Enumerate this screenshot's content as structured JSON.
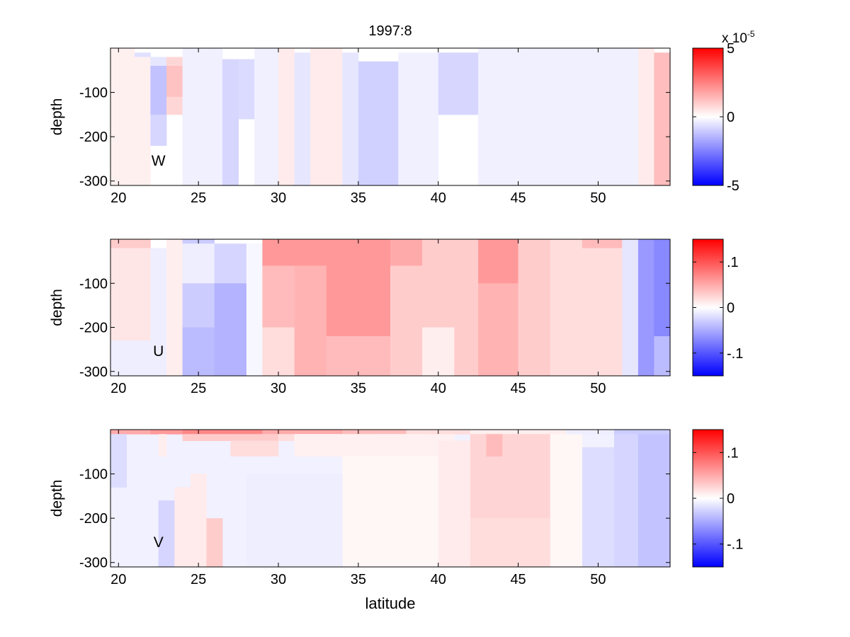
{
  "figure": {
    "title": "1997:8",
    "xlabel": "latitude"
  },
  "chart_data": [
    {
      "type": "heatmap",
      "panel_label": "W",
      "ylabel": "depth",
      "xlim": [
        19.5,
        54.5
      ],
      "ylim": [
        -310,
        0
      ],
      "x_ticks": [
        20,
        25,
        30,
        35,
        40,
        45,
        50
      ],
      "y_ticks": [
        -100,
        -200,
        -300
      ],
      "colorbar": {
        "clim": [
          -5,
          5
        ],
        "ticks": [
          5,
          0,
          -5
        ],
        "multiplier_text": "x 10",
        "multiplier_exp": "-5",
        "low_color": "#0000ff",
        "mid_color": "#ffffff",
        "high_color": "#ff0000"
      },
      "cells": [
        [
          19.5,
          21,
          0,
          -310,
          0.3
        ],
        [
          21,
          22,
          -10,
          -20,
          -0.6
        ],
        [
          21,
          22,
          -20,
          -310,
          0.3
        ],
        [
          22,
          23,
          -20,
          -40,
          -0.5
        ],
        [
          22,
          23,
          -40,
          -150,
          -1.2
        ],
        [
          22,
          23,
          -150,
          -220,
          -0.8
        ],
        [
          23,
          24,
          -20,
          -40,
          0.8
        ],
        [
          23,
          24,
          -40,
          -110,
          1.2
        ],
        [
          23,
          24,
          -110,
          -150,
          0.8
        ],
        [
          24,
          26.5,
          0,
          -310,
          -0.3
        ],
        [
          26.5,
          27.5,
          -25,
          -310,
          -0.8
        ],
        [
          27.5,
          28.5,
          -25,
          -160,
          -0.7
        ],
        [
          28.5,
          30,
          0,
          -310,
          -0.3
        ],
        [
          30,
          31,
          0,
          -310,
          0.4
        ],
        [
          31,
          32,
          -10,
          -310,
          -0.5
        ],
        [
          32,
          34,
          0,
          -310,
          0.4
        ],
        [
          34,
          35,
          -10,
          -310,
          -0.5
        ],
        [
          35,
          37.5,
          -30,
          -310,
          -0.9
        ],
        [
          37.5,
          40,
          -10,
          -310,
          -0.3
        ],
        [
          40,
          42.5,
          -10,
          -150,
          -0.8
        ],
        [
          42.5,
          52.5,
          0,
          -310,
          -0.3
        ],
        [
          52.5,
          53.5,
          0,
          -310,
          0.4
        ],
        [
          53.5,
          54.5,
          -10,
          -310,
          1.3
        ]
      ]
    },
    {
      "type": "heatmap",
      "panel_label": "U",
      "ylabel": "depth",
      "xlim": [
        19.5,
        54.5
      ],
      "ylim": [
        -310,
        0
      ],
      "x_ticks": [
        20,
        25,
        30,
        35,
        40,
        45,
        50
      ],
      "y_ticks": [
        -100,
        -200,
        -300
      ],
      "colorbar": {
        "clim": [
          -0.15,
          0.15
        ],
        "ticks": [
          0.1,
          0,
          -0.1
        ],
        "low_color": "#0000ff",
        "mid_color": "#ffffff",
        "high_color": "#ff0000"
      },
      "cells": [
        [
          19.5,
          22,
          0,
          -20,
          0.03
        ],
        [
          19.5,
          22,
          -20,
          -230,
          0.015
        ],
        [
          19.5,
          22,
          -230,
          -310,
          -0.01
        ],
        [
          22,
          23,
          -20,
          -310,
          -0.01
        ],
        [
          23,
          24,
          0,
          -310,
          0.01
        ],
        [
          24,
          26,
          0,
          -10,
          -0.03
        ],
        [
          24,
          26,
          -10,
          -100,
          -0.01
        ],
        [
          24,
          26,
          -100,
          -200,
          -0.03
        ],
        [
          24,
          26,
          -200,
          -310,
          -0.04
        ],
        [
          26,
          28,
          -10,
          -100,
          -0.025
        ],
        [
          26,
          28,
          -100,
          -310,
          -0.045
        ],
        [
          28,
          29,
          -10,
          -310,
          -0.005
        ],
        [
          29,
          31,
          0,
          -60,
          0.06
        ],
        [
          29,
          31,
          -60,
          -200,
          0.04
        ],
        [
          29,
          31,
          -200,
          -310,
          0.02
        ],
        [
          31,
          33,
          0,
          -60,
          0.06
        ],
        [
          31,
          33,
          -60,
          -310,
          0.045
        ],
        [
          33,
          37,
          0,
          -60,
          0.06
        ],
        [
          33,
          37,
          -60,
          -220,
          0.06
        ],
        [
          33,
          37,
          -220,
          -310,
          0.04
        ],
        [
          37,
          39,
          0,
          -60,
          0.05
        ],
        [
          37,
          39,
          -60,
          -310,
          0.03
        ],
        [
          39,
          41,
          0,
          -200,
          0.03
        ],
        [
          39,
          41,
          -200,
          -310,
          0.01
        ],
        [
          41,
          42.5,
          0,
          -310,
          0.03
        ],
        [
          42.5,
          45,
          0,
          -100,
          0.06
        ],
        [
          42.5,
          45,
          -100,
          -310,
          0.045
        ],
        [
          45,
          47,
          0,
          -310,
          0.03
        ],
        [
          47,
          49,
          0,
          -310,
          0.02
        ],
        [
          49,
          51.5,
          0,
          -20,
          0.04
        ],
        [
          49,
          51.5,
          -20,
          -310,
          0.02
        ],
        [
          51.5,
          52.5,
          0,
          -310,
          -0.015
        ],
        [
          52.5,
          53.5,
          0,
          -310,
          -0.06
        ],
        [
          53.5,
          54.5,
          0,
          -220,
          -0.07
        ],
        [
          53.5,
          54.5,
          -220,
          -310,
          -0.04
        ]
      ]
    },
    {
      "type": "heatmap",
      "panel_label": "V",
      "ylabel": "depth",
      "xlim": [
        19.5,
        54.5
      ],
      "ylim": [
        -310,
        0
      ],
      "x_ticks": [
        20,
        25,
        30,
        35,
        40,
        45,
        50
      ],
      "y_ticks": [
        -100,
        -200,
        -300
      ],
      "colorbar": {
        "clim": [
          -0.15,
          0.15
        ],
        "ticks": [
          0.1,
          0,
          -0.1
        ],
        "low_color": "#0000ff",
        "mid_color": "#ffffff",
        "high_color": "#ff0000"
      },
      "cells": [
        [
          19.5,
          54.5,
          -10,
          -310,
          -0.008
        ],
        [
          19.5,
          22,
          0,
          -10,
          0.05
        ],
        [
          22,
          24,
          0,
          -10,
          0.06
        ],
        [
          24,
          29,
          0,
          -10,
          0.07
        ],
        [
          29,
          34,
          0,
          -10,
          0.05
        ],
        [
          34,
          38,
          0,
          -10,
          0.04
        ],
        [
          38,
          42,
          0,
          -10,
          0.02
        ],
        [
          42,
          48,
          0,
          -10,
          0.01
        ],
        [
          48,
          51,
          0,
          -10,
          -0.01
        ],
        [
          51,
          54.5,
          0,
          -10,
          -0.03
        ],
        [
          19.5,
          20.5,
          -10,
          -130,
          -0.02
        ],
        [
          22.5,
          23,
          -10,
          -60,
          0.01
        ],
        [
          24,
          30,
          -10,
          -25,
          0.03
        ],
        [
          27,
          30,
          -25,
          -60,
          0.02
        ],
        [
          30,
          38,
          -10,
          -25,
          0.02
        ],
        [
          36,
          39,
          -10,
          -40,
          0.015
        ],
        [
          31,
          41,
          -10,
          -60,
          0.008
        ],
        [
          34,
          40,
          -60,
          -310,
          0.005
        ],
        [
          40,
          42,
          -25,
          -310,
          0.012
        ],
        [
          42,
          47,
          -10,
          -200,
          0.025
        ],
        [
          43,
          44,
          -10,
          -60,
          0.04
        ],
        [
          42,
          47,
          -200,
          -310,
          0.02
        ],
        [
          47,
          49,
          -10,
          -310,
          0.005
        ],
        [
          49,
          51,
          -40,
          -310,
          -0.02
        ],
        [
          51,
          52.5,
          -10,
          -310,
          -0.025
        ],
        [
          52.5,
          54.5,
          -10,
          -310,
          -0.035
        ],
        [
          22.5,
          23.5,
          -160,
          -310,
          -0.025
        ],
        [
          23.5,
          24.5,
          -130,
          -310,
          0.012
        ],
        [
          24.5,
          25.5,
          -100,
          -310,
          0.012
        ],
        [
          25.5,
          26.5,
          -200,
          -310,
          0.03
        ],
        [
          28,
          34,
          -100,
          -310,
          -0.01
        ]
      ]
    }
  ]
}
